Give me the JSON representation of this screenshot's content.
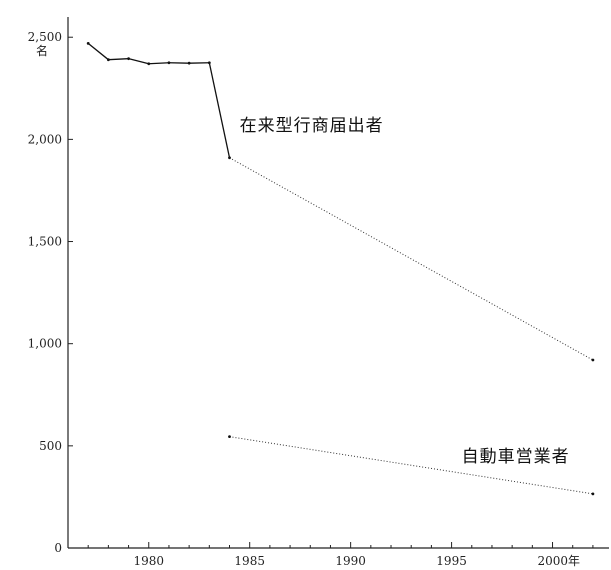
{
  "chart_data": {
    "type": "line",
    "title": "",
    "xlabel": "",
    "ylabel": "",
    "y_unit_label": "名",
    "x_unit_suffix": "年",
    "xlim": [
      1976,
      2002.5
    ],
    "ylim": [
      0,
      2550
    ],
    "x_ticks": [
      1980,
      1985,
      1990,
      1995,
      2000
    ],
    "x_tick_labels": [
      "1980",
      "1985",
      "1990",
      "1995",
      "2000年"
    ],
    "y_ticks": [
      0,
      500,
      1000,
      1500,
      2000,
      2500
    ],
    "y_tick_labels": [
      "0",
      "500",
      "1,000",
      "1,500",
      "2,000",
      "2,500"
    ],
    "grid": false,
    "legend": "none",
    "series": [
      {
        "name": "在来型行商届出者",
        "points": [
          {
            "x": 1977,
            "y": 2470,
            "style": "solid"
          },
          {
            "x": 1978,
            "y": 2390,
            "style": "solid"
          },
          {
            "x": 1979,
            "y": 2395,
            "style": "solid"
          },
          {
            "x": 1980,
            "y": 2370,
            "style": "solid"
          },
          {
            "x": 1981,
            "y": 2375,
            "style": "solid"
          },
          {
            "x": 1982,
            "y": 2373,
            "style": "solid"
          },
          {
            "x": 1983,
            "y": 2375,
            "style": "solid"
          },
          {
            "x": 1984,
            "y": 1910,
            "style": "solid"
          },
          {
            "x": 2002,
            "y": 920,
            "style": "dotted"
          }
        ]
      },
      {
        "name": "自動車営業者",
        "points": [
          {
            "x": 1984,
            "y": 545,
            "style": "solid"
          },
          {
            "x": 2002,
            "y": 265,
            "style": "dotted"
          }
        ]
      }
    ]
  }
}
